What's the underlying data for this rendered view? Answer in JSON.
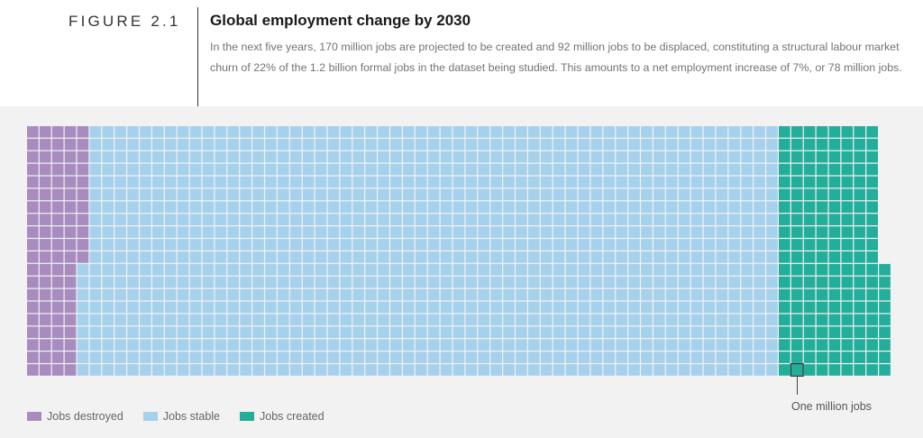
{
  "header": {
    "figure_label": "FIGURE 2.1",
    "title": "Global employment change by 2030",
    "subtitle": "In the next five years, 170 million jobs are projected to be created and 92 million jobs to be displaced, constituting a structural labour market churn of 22% of the 1.2 billion formal jobs in the dataset being studied. This amounts to a net employment increase of 7%, or 78 million jobs."
  },
  "colors": {
    "destroyed": "#a88bbf",
    "stable": "#a6d1ec",
    "created": "#23ae9b",
    "background": "#f2f2f2"
  },
  "chart_data": {
    "type": "waffle",
    "unit": "One million jobs",
    "rows": 20,
    "categories": [
      "Jobs destroyed",
      "Jobs stable",
      "Jobs created"
    ],
    "values": [
      92,
      1108,
      170
    ],
    "column_counts": {
      "Jobs destroyed": [
        5,
        4
      ],
      "Jobs stable": [
        55,
        56
      ],
      "Jobs created": [
        8,
        9
      ]
    }
  },
  "legend": {
    "destroyed": "Jobs destroyed",
    "stable": "Jobs stable",
    "created": "Jobs created"
  },
  "callout": {
    "label": "One million jobs"
  }
}
